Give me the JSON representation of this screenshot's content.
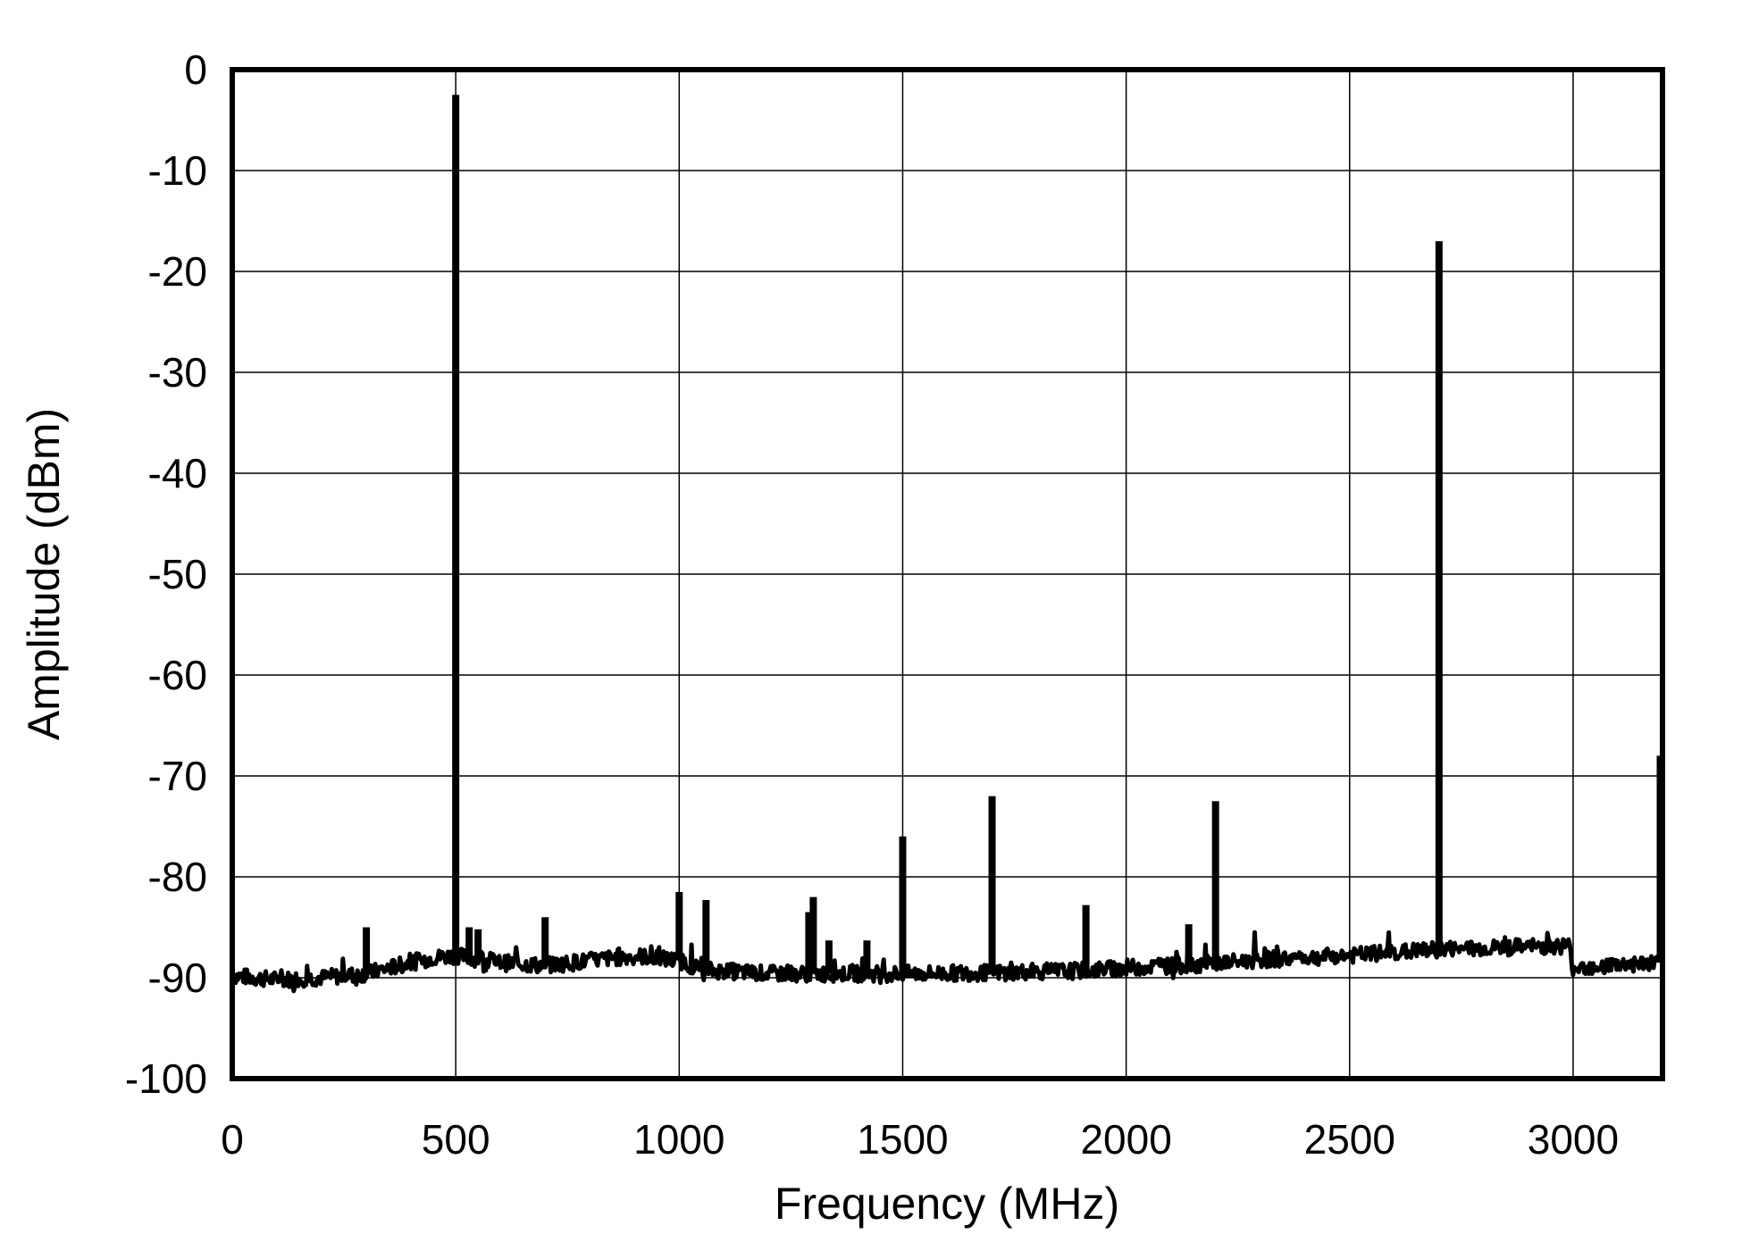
{
  "chart_data": {
    "type": "line",
    "title": "",
    "xlabel": "Frequency (MHz)",
    "ylabel": "Amplitude (dBm)",
    "xlim": [
      0,
      3200
    ],
    "ylim": [
      -100,
      0
    ],
    "grid": true,
    "x_ticks": [
      0,
      500,
      1000,
      1500,
      2000,
      2500,
      3000
    ],
    "x_tick_labels": [
      "0",
      "500",
      "1000",
      "1500",
      "2000",
      "2500",
      "3000"
    ],
    "y_ticks": [
      0,
      -10,
      -20,
      -30,
      -40,
      -50,
      -60,
      -70,
      -80,
      -90,
      -100
    ],
    "y_tick_labels": [
      "0",
      "-10",
      "-20",
      "-30",
      "-40",
      "-50",
      "-60",
      "-70",
      "-80",
      "-90",
      "-100"
    ],
    "noise_floor": [
      {
        "x": 0,
        "y": -89.8
      },
      {
        "x": 100,
        "y": -90.2
      },
      {
        "x": 200,
        "y": -90.0
      },
      {
        "x": 300,
        "y": -89.6
      },
      {
        "x": 400,
        "y": -88.5
      },
      {
        "x": 450,
        "y": -88.0
      },
      {
        "x": 500,
        "y": -87.8
      },
      {
        "x": 600,
        "y": -88.5
      },
      {
        "x": 700,
        "y": -88.8
      },
      {
        "x": 800,
        "y": -88.3
      },
      {
        "x": 900,
        "y": -87.8
      },
      {
        "x": 1000,
        "y": -88.3
      },
      {
        "x": 1050,
        "y": -89.2
      },
      {
        "x": 1200,
        "y": -89.6
      },
      {
        "x": 1500,
        "y": -89.6
      },
      {
        "x": 1700,
        "y": -89.5
      },
      {
        "x": 1900,
        "y": -89.3
      },
      {
        "x": 2000,
        "y": -89.0
      },
      {
        "x": 2200,
        "y": -88.6
      },
      {
        "x": 2300,
        "y": -88.2
      },
      {
        "x": 2500,
        "y": -87.8
      },
      {
        "x": 2700,
        "y": -87.2
      },
      {
        "x": 2850,
        "y": -87.0
      },
      {
        "x": 2990,
        "y": -86.8
      },
      {
        "x": 3000,
        "y": -89.0
      },
      {
        "x": 3100,
        "y": -88.7
      },
      {
        "x": 3200,
        "y": -88.5
      }
    ],
    "peaks": [
      {
        "x": 300,
        "y": -85.0
      },
      {
        "x": 500,
        "y": -2.5
      },
      {
        "x": 530,
        "y": -85.0
      },
      {
        "x": 550,
        "y": -85.2
      },
      {
        "x": 700,
        "y": -84.0
      },
      {
        "x": 1000,
        "y": -81.5
      },
      {
        "x": 1060,
        "y": -82.3
      },
      {
        "x": 1290,
        "y": -83.5
      },
      {
        "x": 1300,
        "y": -82.0
      },
      {
        "x": 1335,
        "y": -86.3
      },
      {
        "x": 1420,
        "y": -86.3
      },
      {
        "x": 1500,
        "y": -76.0
      },
      {
        "x": 1700,
        "y": -72.0
      },
      {
        "x": 1910,
        "y": -82.8
      },
      {
        "x": 2140,
        "y": -84.7
      },
      {
        "x": 2200,
        "y": -72.5
      },
      {
        "x": 2700,
        "y": -17.0
      },
      {
        "x": 3195,
        "y": -68.0
      }
    ]
  }
}
